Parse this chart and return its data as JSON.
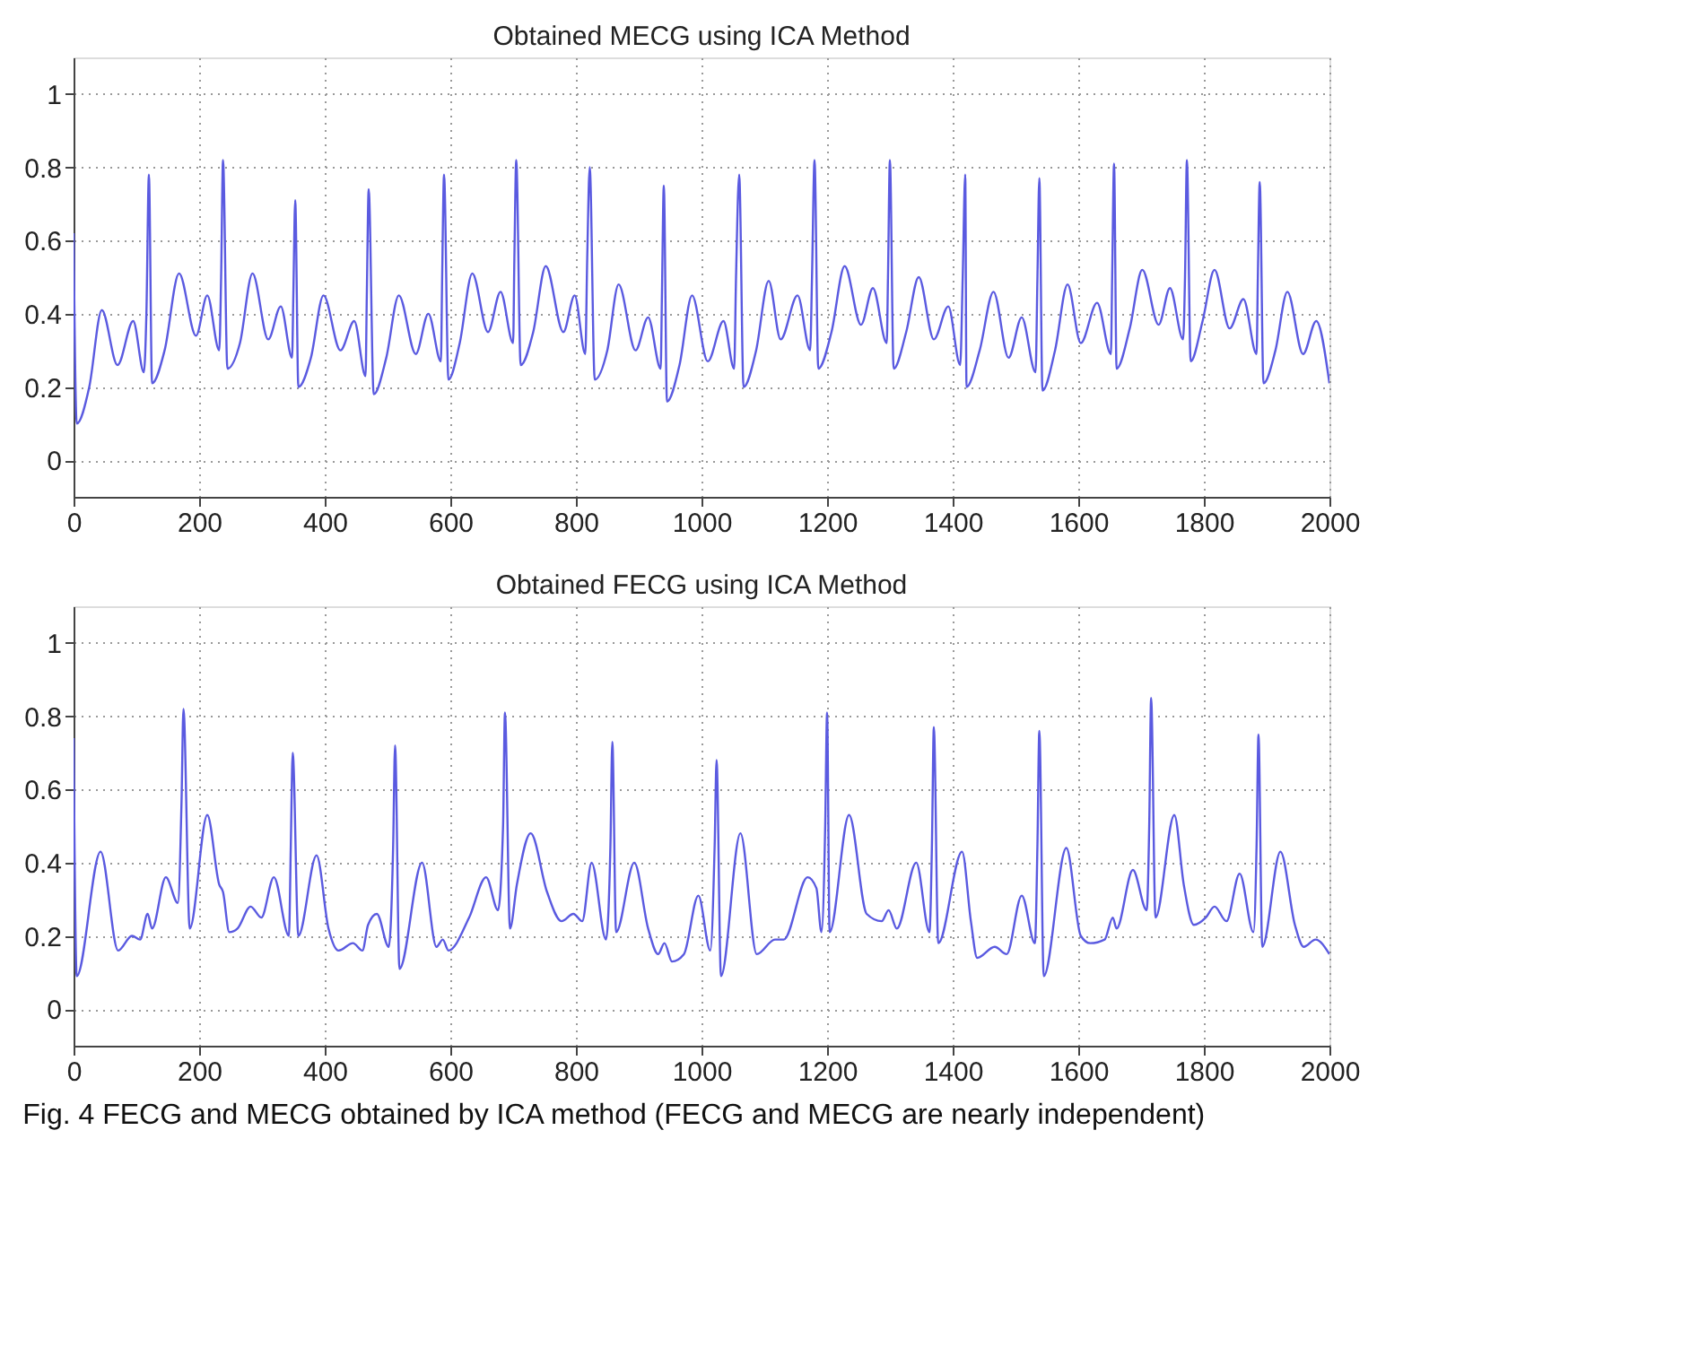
{
  "chart_data": [
    {
      "type": "line",
      "title": "Obtained MECG using ICA Method",
      "xlim": [
        0,
        2000
      ],
      "ylim": [
        -0.1,
        1.1
      ],
      "xticks": [
        0,
        200,
        400,
        600,
        800,
        1000,
        1200,
        1400,
        1600,
        1800,
        2000
      ],
      "yticks": [
        0,
        0.2,
        0.4,
        0.6,
        0.8,
        1
      ],
      "grid": true,
      "line_style": "solid",
      "marker": "none",
      "series": [
        {
          "color": "#5a5ae0",
          "x": [
            0,
            5,
            25,
            45,
            70,
            95,
            112,
            116,
            120,
            125,
            145,
            168,
            195,
            213,
            232,
            235,
            238,
            245,
            265,
            285,
            310,
            330,
            348,
            350,
            353,
            358,
            378,
            398,
            425,
            447,
            465,
            467,
            470,
            478,
            498,
            518,
            545,
            565,
            585,
            587,
            590,
            597,
            615,
            635,
            660,
            680,
            700,
            702,
            705,
            712,
            732,
            752,
            780,
            798,
            815,
            818,
            822,
            830,
            850,
            868,
            895,
            915,
            935,
            937,
            940,
            945,
            965,
            985,
            1010,
            1035,
            1052,
            1055,
            1060,
            1067,
            1087,
            1107,
            1126,
            1153,
            1173,
            1176,
            1180,
            1186,
            1207,
            1228,
            1254,
            1273,
            1295,
            1297,
            1300,
            1306,
            1326,
            1346,
            1370,
            1393,
            1412,
            1416,
            1420,
            1422,
            1443,
            1465,
            1489,
            1510,
            1532,
            1535,
            1538,
            1543,
            1563,
            1583,
            1604,
            1630,
            1652,
            1654,
            1657,
            1661,
            1682,
            1702,
            1728,
            1746,
            1767,
            1770,
            1773,
            1779,
            1798,
            1817,
            1841,
            1863,
            1884,
            1886,
            1889,
            1895,
            1914,
            1933,
            1958,
            1979,
            2000
          ],
          "values": [
            0.62,
            0.1,
            0.2,
            0.41,
            0.26,
            0.38,
            0.24,
            0.4,
            0.78,
            0.21,
            0.3,
            0.51,
            0.34,
            0.45,
            0.3,
            0.5,
            0.82,
            0.25,
            0.32,
            0.51,
            0.33,
            0.42,
            0.28,
            0.45,
            0.71,
            0.2,
            0.28,
            0.45,
            0.3,
            0.38,
            0.23,
            0.45,
            0.74,
            0.18,
            0.28,
            0.45,
            0.29,
            0.4,
            0.27,
            0.5,
            0.78,
            0.22,
            0.32,
            0.51,
            0.35,
            0.46,
            0.32,
            0.55,
            0.82,
            0.26,
            0.35,
            0.53,
            0.35,
            0.45,
            0.29,
            0.55,
            0.8,
            0.22,
            0.3,
            0.48,
            0.3,
            0.39,
            0.25,
            0.45,
            0.75,
            0.16,
            0.26,
            0.45,
            0.27,
            0.38,
            0.25,
            0.5,
            0.78,
            0.2,
            0.3,
            0.49,
            0.33,
            0.45,
            0.3,
            0.5,
            0.82,
            0.25,
            0.35,
            0.53,
            0.37,
            0.47,
            0.32,
            0.5,
            0.82,
            0.25,
            0.35,
            0.5,
            0.33,
            0.42,
            0.26,
            0.5,
            0.78,
            0.2,
            0.3,
            0.46,
            0.28,
            0.39,
            0.24,
            0.5,
            0.77,
            0.19,
            0.3,
            0.48,
            0.32,
            0.43,
            0.29,
            0.5,
            0.81,
            0.25,
            0.36,
            0.52,
            0.37,
            0.47,
            0.33,
            0.5,
            0.82,
            0.27,
            0.38,
            0.52,
            0.36,
            0.44,
            0.29,
            0.5,
            0.76,
            0.21,
            0.3,
            0.46,
            0.29,
            0.38,
            0.21
          ]
        }
      ]
    },
    {
      "type": "line",
      "title": "Obtained FECG using ICA Method",
      "xlim": [
        0,
        2000
      ],
      "ylim": [
        -0.1,
        1.1
      ],
      "xticks": [
        0,
        200,
        400,
        600,
        800,
        1000,
        1200,
        1400,
        1600,
        1800,
        2000
      ],
      "yticks": [
        0,
        0.2,
        0.4,
        0.6,
        0.8,
        1
      ],
      "grid": true,
      "line_style": "solid",
      "marker": "none",
      "annotations": [
        "Fig. 4  FECG and MECG obtained by ICA method (FECG and MECG are nearly independent)"
      ],
      "series": [
        {
          "color": "#5a5ae0",
          "x": [
            0,
            5,
            43,
            71,
            93,
            106,
            118,
            125,
            147,
            166,
            172,
            175,
            185,
            213,
            232,
            238,
            248,
            261,
            282,
            299,
            319,
            343,
            346,
            349,
            358,
            387,
            406,
            422,
            445,
            460,
            469,
            483,
            502,
            509,
            512,
            519,
            555,
            578,
            588,
            597,
            630,
            657,
            676,
            684,
            687,
            695,
            706,
            728,
            754,
            777,
            796,
            810,
            825,
            848,
            855,
            858,
            864,
            893,
            915,
            931,
            941,
            953,
            972,
            995,
            1014,
            1021,
            1024,
            1031,
            1062,
            1088,
            1117,
            1131,
            1169,
            1183,
            1191,
            1197,
            1200,
            1204,
            1235,
            1263,
            1287,
            1298,
            1311,
            1342,
            1363,
            1367,
            1370,
            1377,
            1415,
            1429,
            1439,
            1467,
            1486,
            1510,
            1531,
            1535,
            1538,
            1545,
            1581,
            1604,
            1619,
            1642,
            1655,
            1661,
            1687,
            1709,
            1713,
            1716,
            1723,
            1753,
            1768,
            1784,
            1803,
            1817,
            1836,
            1857,
            1879,
            1884,
            1887,
            1893,
            1922,
            1945,
            1959,
            1978,
            2000
          ],
          "values": [
            0.74,
            0.09,
            0.43,
            0.16,
            0.2,
            0.19,
            0.26,
            0.22,
            0.36,
            0.29,
            0.57,
            0.82,
            0.22,
            0.53,
            0.34,
            0.32,
            0.21,
            0.22,
            0.28,
            0.25,
            0.36,
            0.2,
            0.45,
            0.7,
            0.2,
            0.42,
            0.22,
            0.16,
            0.18,
            0.16,
            0.23,
            0.26,
            0.17,
            0.45,
            0.72,
            0.11,
            0.4,
            0.17,
            0.19,
            0.16,
            0.25,
            0.36,
            0.27,
            0.5,
            0.81,
            0.22,
            0.34,
            0.48,
            0.32,
            0.24,
            0.26,
            0.24,
            0.4,
            0.19,
            0.45,
            0.73,
            0.21,
            0.4,
            0.22,
            0.15,
            0.18,
            0.13,
            0.15,
            0.31,
            0.16,
            0.45,
            0.68,
            0.09,
            0.48,
            0.15,
            0.19,
            0.19,
            0.36,
            0.33,
            0.21,
            0.5,
            0.81,
            0.21,
            0.53,
            0.26,
            0.24,
            0.27,
            0.22,
            0.4,
            0.21,
            0.45,
            0.77,
            0.18,
            0.43,
            0.24,
            0.14,
            0.17,
            0.15,
            0.31,
            0.18,
            0.45,
            0.76,
            0.09,
            0.44,
            0.2,
            0.18,
            0.19,
            0.25,
            0.22,
            0.38,
            0.27,
            0.5,
            0.85,
            0.25,
            0.53,
            0.34,
            0.23,
            0.25,
            0.28,
            0.24,
            0.37,
            0.21,
            0.45,
            0.75,
            0.17,
            0.43,
            0.23,
            0.17,
            0.19,
            0.15
          ]
        }
      ]
    }
  ]
}
